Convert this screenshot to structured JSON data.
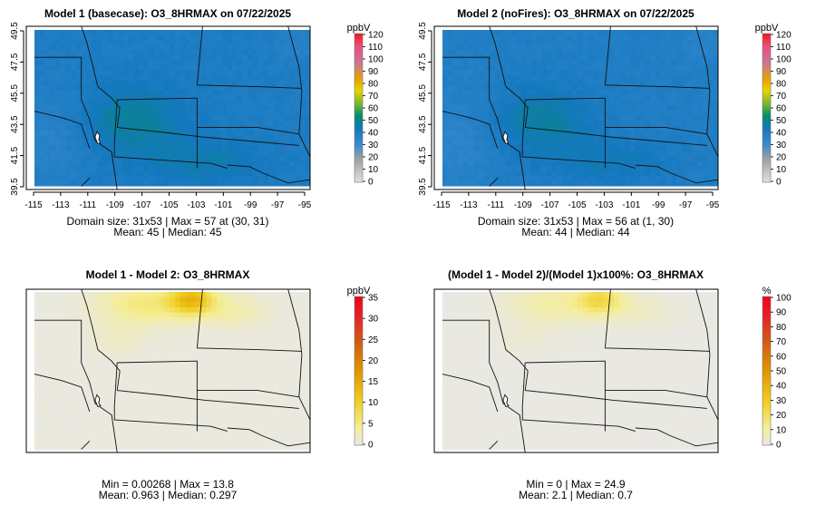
{
  "chart_data": [
    {
      "type": "heatmap",
      "title": "Model 1 (basecase): O3_8HRMAX on 07/22/2025",
      "xticks": [
        "-115",
        "-113",
        "-111",
        "-109",
        "-107",
        "-105",
        "-103",
        "-101",
        "-99",
        "-97",
        "-95"
      ],
      "yticks": [
        "39.5",
        "41.5",
        "43.5",
        "45.5",
        "47.5",
        "49.5"
      ],
      "xlim": [
        -115,
        -95
      ],
      "ylim": [
        39.5,
        49.5
      ],
      "colorbar": {
        "unit": "ppbV",
        "ticks": [
          "0",
          "10",
          "20",
          "30",
          "40",
          "50",
          "60",
          "70",
          "80",
          "90",
          "100",
          "110",
          "120"
        ],
        "range": [
          0,
          120
        ]
      },
      "stats_line1": "Domain size: 31x53 | Max = 57 at (30, 31)",
      "stats_line2": "Mean: 45 |  Median: 45"
    },
    {
      "type": "heatmap",
      "title": "Model 2 (noFires): O3_8HRMAX on 07/22/2025",
      "xticks": [
        "-115",
        "-113",
        "-111",
        "-109",
        "-107",
        "-105",
        "-103",
        "-101",
        "-99",
        "-97",
        "-95"
      ],
      "yticks": [
        "39.5",
        "41.5",
        "43.5",
        "45.5",
        "47.5",
        "49.5"
      ],
      "xlim": [
        -115,
        -95
      ],
      "ylim": [
        39.5,
        49.5
      ],
      "colorbar": {
        "unit": "ppbV",
        "ticks": [
          "0",
          "10",
          "20",
          "30",
          "40",
          "50",
          "60",
          "70",
          "80",
          "90",
          "100",
          "110",
          "120"
        ],
        "range": [
          0,
          120
        ]
      },
      "stats_line1": "Domain size: 31x53 | Max = 56 at (1, 30)",
      "stats_line2": "Mean: 44 |  Median: 44"
    },
    {
      "type": "heatmap",
      "title": "Model 1 - Model 2: O3_8HRMAX",
      "colorbar": {
        "unit": "ppbV",
        "ticks": [
          "0",
          "5",
          "10",
          "15",
          "20",
          "25",
          "30",
          "35"
        ],
        "range": [
          0,
          35
        ]
      },
      "stats_line1": "Min = 0.00268 | Max = 13.8",
      "stats_line2": "Mean: 0.963 |  Median: 0.297"
    },
    {
      "type": "heatmap",
      "title": "(Model 1 - Model 2)/(Model 1)x100%: O3_8HRMAX",
      "colorbar": {
        "unit": "%",
        "ticks": [
          "0",
          "10",
          "20",
          "30",
          "40",
          "50",
          "60",
          "70",
          "80",
          "90",
          "100"
        ],
        "range": [
          0,
          100
        ]
      },
      "stats_line1": "Min = 0 | Max = 24.9",
      "stats_line2": "Mean: 2.1 |  Median: 0.7"
    }
  ]
}
